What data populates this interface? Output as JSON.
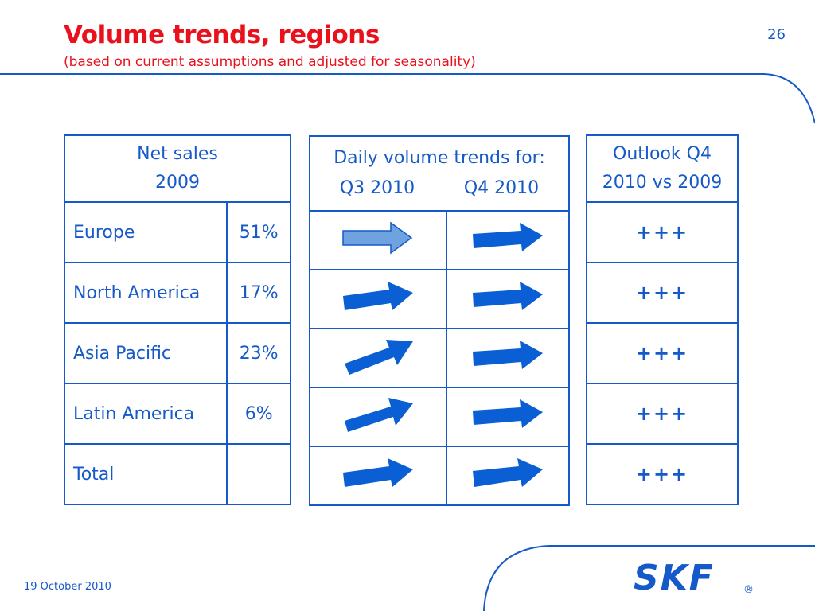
{
  "header": {
    "title": "Volume trends, regions",
    "subtitle": "(based on current assumptions and adjusted for seasonality)",
    "page_number": "26"
  },
  "colors": {
    "title": "#e8111c",
    "brand_blue": "#1659c9",
    "arrow_blue": "#0a5fd4",
    "arrow_light": "#6fa3e0"
  },
  "net_sales": {
    "header_line1": "Net sales",
    "header_line2": "2009",
    "rows": [
      {
        "region": "Europe",
        "share": "51%"
      },
      {
        "region": "North America",
        "share": "17%"
      },
      {
        "region": "Asia Pacific",
        "share": "23%"
      },
      {
        "region": "Latin America",
        "share": "6%"
      },
      {
        "region": "Total",
        "share": ""
      }
    ]
  },
  "daily_trends": {
    "header_line1": "Daily volume trends for:",
    "col_q3": "Q3 2010",
    "col_q4": "Q4 2010",
    "rows": [
      {
        "q3": "right-arrow-icon-light",
        "q4": "right-arrow-icon"
      },
      {
        "q3": "right-arrow-icon",
        "q4": "right-arrow-icon"
      },
      {
        "q3": "up-right-arrow-icon",
        "q4": "right-arrow-icon"
      },
      {
        "q3": "up-right-arrow-icon",
        "q4": "right-arrow-icon"
      },
      {
        "q3": "right-arrow-icon",
        "q4": "right-arrow-icon"
      }
    ]
  },
  "outlook": {
    "header_line1": "Outlook Q4",
    "header_line2": "2010 vs 2009",
    "rows": [
      "+++",
      "+++",
      "+++",
      "+++",
      "+++"
    ]
  },
  "footer": {
    "date": "19 October 2010",
    "logo": "SKF",
    "registered": "®"
  }
}
